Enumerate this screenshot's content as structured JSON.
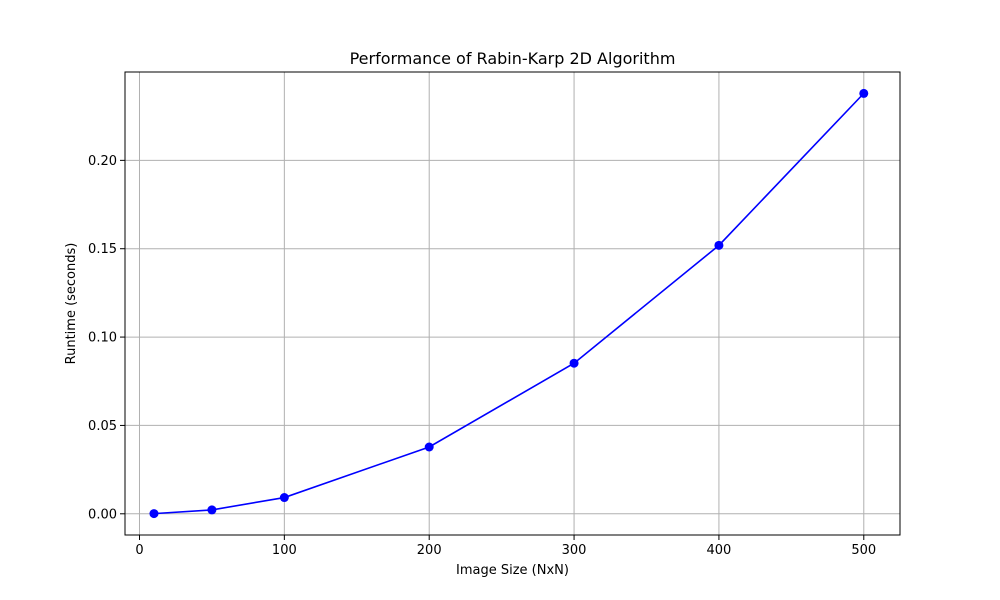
{
  "chart_data": {
    "type": "line",
    "title": "Performance of Rabin-Karp 2D Algorithm",
    "xlabel": "Image Size (NxN)",
    "ylabel": "Runtime (seconds)",
    "xlim": [
      -10,
      525
    ],
    "ylim": [
      -0.012,
      0.25
    ],
    "xticks": [
      0,
      100,
      200,
      300,
      400,
      500
    ],
    "xtick_labels": [
      "0",
      "100",
      "200",
      "300",
      "400",
      "500"
    ],
    "yticks": [
      0.0,
      0.05,
      0.1,
      0.15,
      0.2
    ],
    "ytick_labels": [
      "0.00",
      "0.05",
      "0.10",
      "0.15",
      "0.20"
    ],
    "grid": true,
    "series": [
      {
        "color": "#0000ff",
        "marker": "circle",
        "x": [
          10,
          50,
          100,
          200,
          300,
          400,
          500
        ],
        "y": [
          0.0001,
          0.0022,
          0.0092,
          0.0378,
          0.0852,
          0.1519,
          0.2379
        ]
      }
    ]
  }
}
